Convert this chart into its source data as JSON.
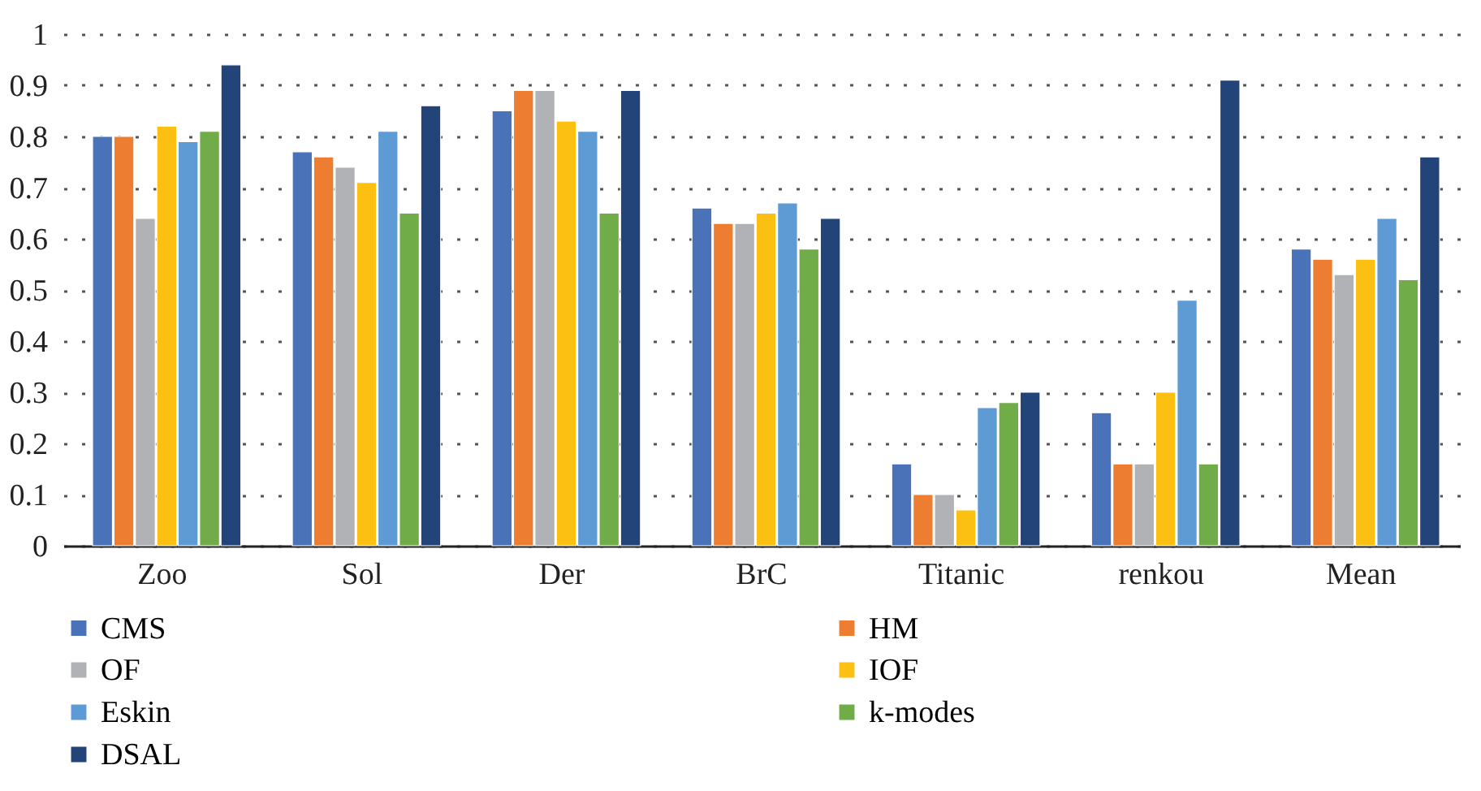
{
  "chart_data": {
    "type": "bar",
    "categories": [
      "Zoo",
      "Sol",
      "Der",
      "BrC",
      "Titanic",
      "renkou",
      "Mean"
    ],
    "series": [
      {
        "name": "CMS",
        "color": "#4a72b8",
        "values": [
          0.8,
          0.77,
          0.85,
          0.66,
          0.16,
          0.26,
          0.58
        ]
      },
      {
        "name": "HM",
        "color": "#ed7d31",
        "values": [
          0.8,
          0.76,
          0.89,
          0.63,
          0.1,
          0.16,
          0.56
        ]
      },
      {
        "name": "OF",
        "color": "#b1b2b5",
        "values": [
          0.64,
          0.74,
          0.89,
          0.63,
          0.1,
          0.16,
          0.53
        ]
      },
      {
        "name": "IOF",
        "color": "#fcc012",
        "values": [
          0.82,
          0.71,
          0.83,
          0.65,
          0.07,
          0.3,
          0.56
        ]
      },
      {
        "name": "Eskin",
        "color": "#5e9bd5",
        "values": [
          0.79,
          0.81,
          0.81,
          0.67,
          0.27,
          0.48,
          0.64
        ]
      },
      {
        "name": "k-modes",
        "color": "#70ac47",
        "values": [
          0.81,
          0.65,
          0.65,
          0.58,
          0.28,
          0.16,
          0.52
        ]
      },
      {
        "name": "DSAL",
        "color": "#234479",
        "values": [
          0.94,
          0.86,
          0.89,
          0.64,
          0.3,
          0.91,
          0.76
        ]
      }
    ],
    "ylim": [
      0,
      1
    ],
    "yticks": [
      0,
      0.1,
      0.2,
      0.3,
      0.4,
      0.5,
      0.6,
      0.7,
      0.8,
      0.9,
      1
    ],
    "grid": "y",
    "legend": "bottom"
  }
}
